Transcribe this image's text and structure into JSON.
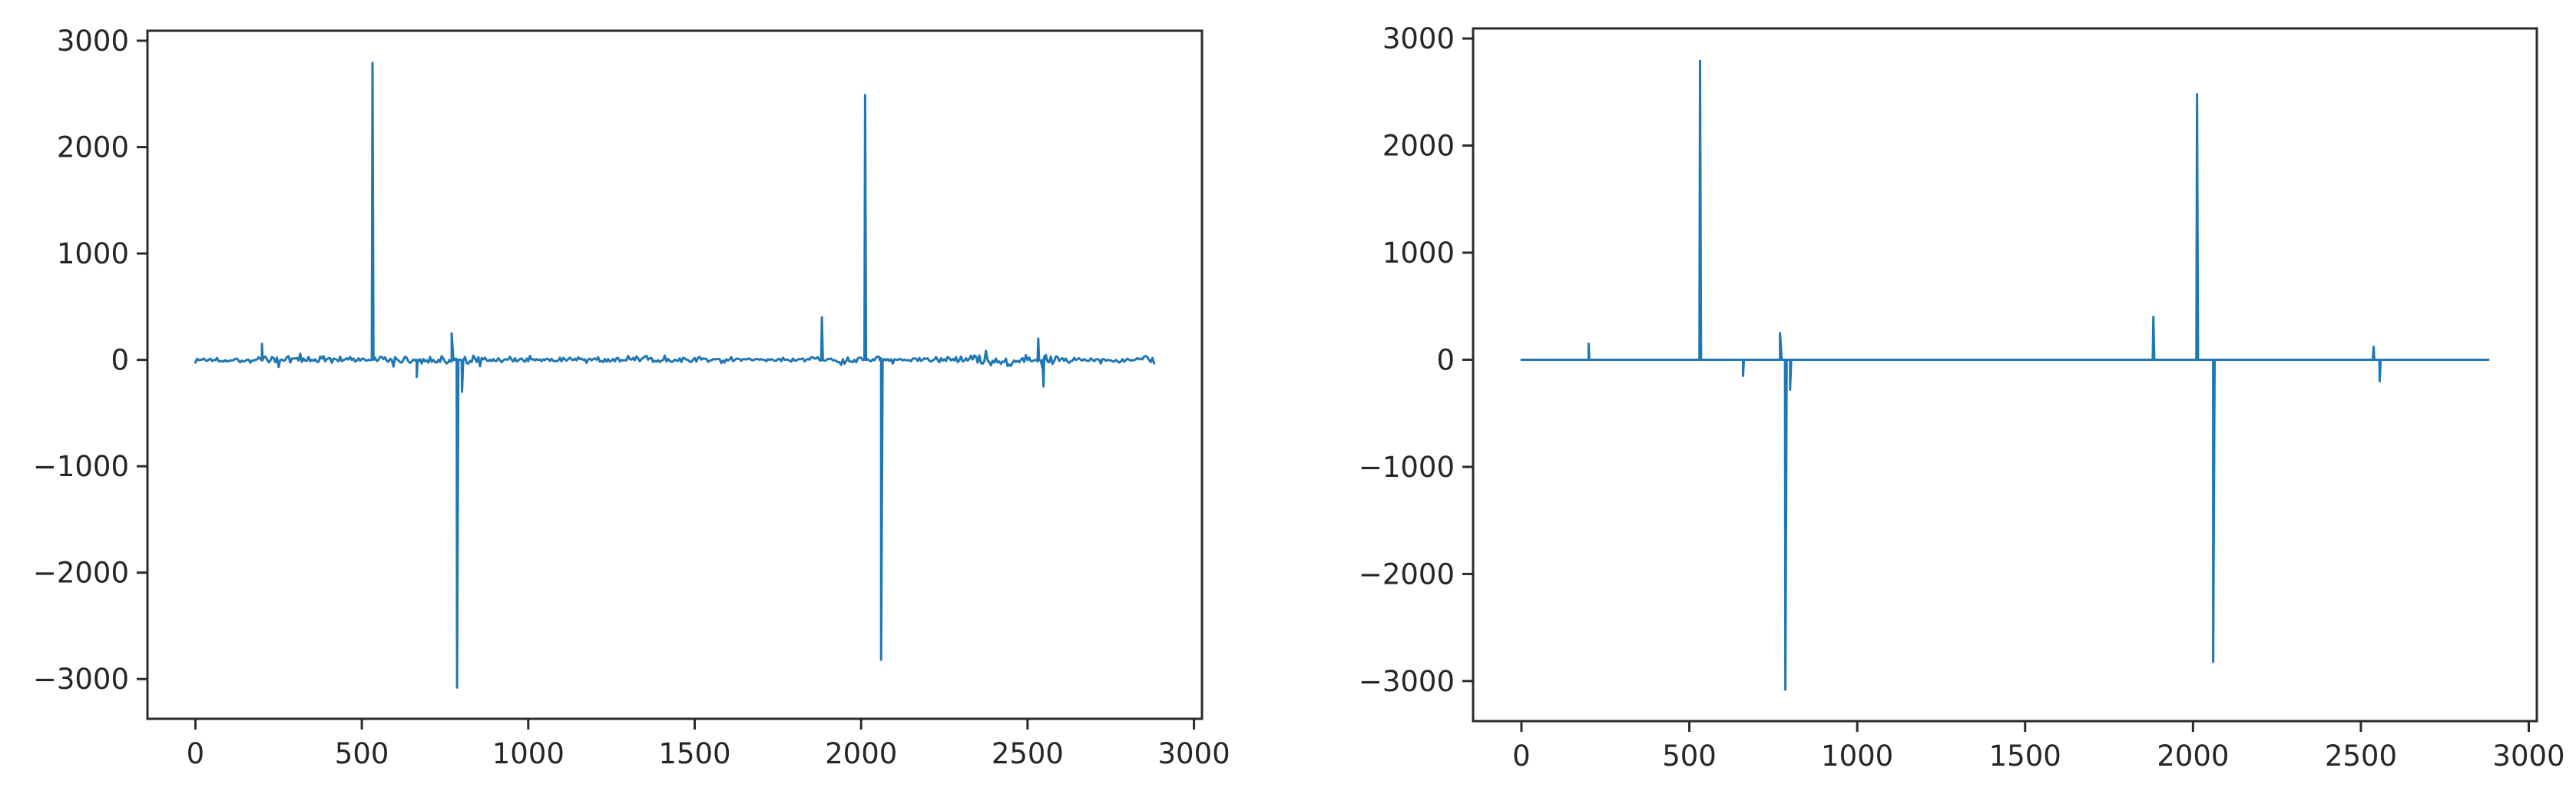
{
  "figure": {
    "background_color": "#ffffff",
    "panel_count": 2
  },
  "chart_data": [
    {
      "id": "left",
      "type": "line",
      "title": "",
      "xlabel": "",
      "ylabel": "",
      "legend": null,
      "grid": false,
      "line_color": "#1f77b4",
      "axis_color": "#2b2b2b",
      "tick_label_color": "#262626",
      "x_ticks": [
        0,
        500,
        1000,
        1500,
        2000,
        2500,
        3000
      ],
      "x_tick_labels": [
        "0",
        "500",
        "1000",
        "1500",
        "2000",
        "2500",
        "3000"
      ],
      "y_ticks": [
        3000,
        2000,
        1000,
        0,
        -1000,
        -2000,
        -3000
      ],
      "y_tick_labels": [
        "3000",
        "2000",
        "1000",
        "0",
        "−1000",
        "−2000",
        "−3000"
      ],
      "xlim": [
        -144,
        3024
      ],
      "ylim": [
        -3374,
        3094
      ],
      "x_data_range": [
        0,
        2880
      ],
      "baseline": 0,
      "base_noise": 35,
      "noise_seed": 1337,
      "spikes": [
        [
          200,
          150,
          4
        ],
        [
          532,
          2790,
          7
        ],
        [
          665,
          -160,
          5
        ],
        [
          770,
          250,
          14
        ],
        [
          786,
          -3080,
          11
        ],
        [
          801,
          -300,
          7
        ],
        [
          1882,
          400,
          6
        ],
        [
          2012,
          2490,
          7
        ],
        [
          2060,
          -2820,
          9
        ],
        [
          2532,
          200,
          5
        ],
        [
          2548,
          -250,
          6
        ]
      ],
      "noise_bursts": [
        [
          0,
          90,
          40
        ],
        [
          110,
          185,
          30
        ],
        [
          205,
          340,
          75
        ],
        [
          345,
          425,
          50
        ],
        [
          430,
          520,
          35
        ],
        [
          540,
          640,
          70
        ],
        [
          680,
          762,
          85
        ],
        [
          808,
          875,
          95
        ],
        [
          880,
          1005,
          40
        ],
        [
          1010,
          1205,
          30
        ],
        [
          1215,
          1505,
          45
        ],
        [
          1515,
          1860,
          30
        ],
        [
          1890,
          2000,
          55
        ],
        [
          2028,
          2050,
          80
        ],
        [
          2075,
          2205,
          40
        ],
        [
          2210,
          2325,
          35
        ],
        [
          2330,
          2378,
          110
        ],
        [
          2382,
          2522,
          60
        ],
        [
          2526,
          2585,
          90
        ],
        [
          2592,
          2755,
          35
        ],
        [
          2760,
          2842,
          45
        ],
        [
          2846,
          2880,
          80
        ]
      ]
    },
    {
      "id": "right",
      "type": "line",
      "title": "",
      "xlabel": "",
      "ylabel": "",
      "legend": null,
      "grid": false,
      "line_color": "#1f77b4",
      "axis_color": "#2b2b2b",
      "tick_label_color": "#262626",
      "x_ticks": [
        0,
        500,
        1000,
        1500,
        2000,
        2500,
        3000
      ],
      "x_tick_labels": [
        "0",
        "500",
        "1000",
        "1500",
        "2000",
        "2500",
        "3000"
      ],
      "y_ticks": [
        3000,
        2000,
        1000,
        0,
        -1000,
        -2000,
        -3000
      ],
      "y_tick_labels": [
        "3000",
        "2000",
        "1000",
        "0",
        "−1000",
        "−2000",
        "−3000"
      ],
      "xlim": [
        -144,
        3024
      ],
      "ylim": [
        -3374,
        3094
      ],
      "x_data_range": [
        0,
        2880
      ],
      "baseline": 0,
      "base_noise": 0,
      "noise_seed": 7,
      "spikes": [
        [
          200,
          150,
          4
        ],
        [
          532,
          2790,
          7
        ],
        [
          660,
          -150,
          5
        ],
        [
          770,
          250,
          16
        ],
        [
          786,
          -3080,
          11
        ],
        [
          800,
          -280,
          7
        ],
        [
          1882,
          400,
          6
        ],
        [
          2012,
          2480,
          7
        ],
        [
          2060,
          -2820,
          9
        ],
        [
          2538,
          120,
          5
        ],
        [
          2556,
          -200,
          6
        ]
      ],
      "noise_bursts": []
    }
  ]
}
